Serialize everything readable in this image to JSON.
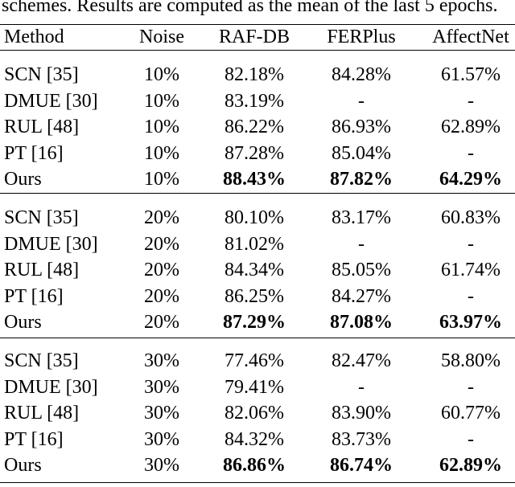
{
  "caption": "schemes. Results are computed as the mean of the last 5 epochs.",
  "table": {
    "header": [
      "Method",
      "Noise",
      "RAF-DB",
      "FERPlus",
      "AffectNet"
    ],
    "groups": [
      [
        [
          "SCN [35]",
          "10%",
          "82.18%",
          "84.28%",
          "61.57%"
        ],
        [
          "DMUE [30]",
          "10%",
          "83.19%",
          "-",
          "-"
        ],
        [
          "RUL [48]",
          "10%",
          "86.22%",
          "86.93%",
          "62.89%"
        ],
        [
          "PT [16]",
          "10%",
          "87.28%",
          "85.04%",
          "-"
        ],
        [
          "Ours",
          "10%",
          "88.43%",
          "87.82%",
          "64.29%"
        ]
      ],
      [
        [
          "SCN [35]",
          "20%",
          "80.10%",
          "83.17%",
          "60.83%"
        ],
        [
          "DMUE [30]",
          "20%",
          "81.02%",
          "-",
          "-"
        ],
        [
          "RUL [48]",
          "20%",
          "84.34%",
          "85.05%",
          "61.74%"
        ],
        [
          "PT [16]",
          "20%",
          "86.25%",
          "84.27%",
          "-"
        ],
        [
          "Ours",
          "20%",
          "87.29%",
          "87.08%",
          "63.97%"
        ]
      ],
      [
        [
          "SCN [35]",
          "30%",
          "77.46%",
          "82.47%",
          "58.80%"
        ],
        [
          "DMUE [30]",
          "30%",
          "79.41%",
          "-",
          "-"
        ],
        [
          "RUL [48]",
          "30%",
          "82.06%",
          "83.90%",
          "60.77%"
        ],
        [
          "PT [16]",
          "30%",
          "84.32%",
          "83.73%",
          "-"
        ],
        [
          "Ours",
          "30%",
          "86.86%",
          "86.74%",
          "62.89%"
        ]
      ]
    ]
  }
}
